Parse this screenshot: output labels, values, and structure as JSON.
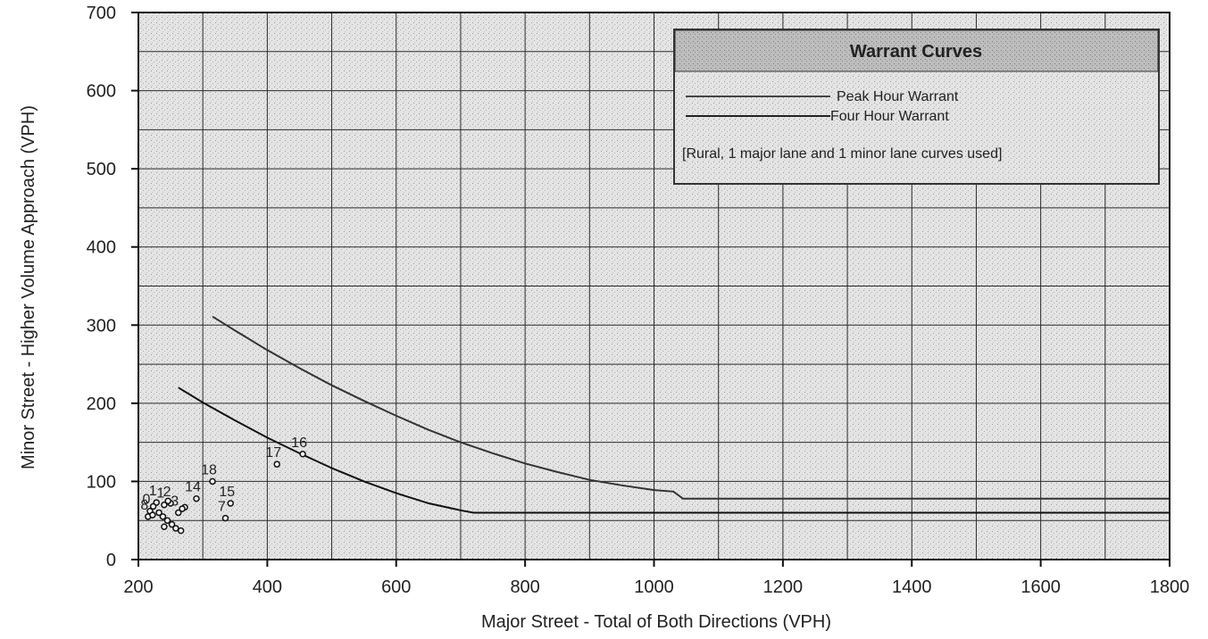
{
  "chart_data": {
    "type": "scatter",
    "xlabel": "Major Street - Total of Both Directions (VPH)",
    "ylabel": "Minor Street - Higher Volume Approach (VPH)",
    "xlim": [
      200,
      1800
    ],
    "ylim": [
      0,
      700
    ],
    "x_ticks": [
      "200",
      "400",
      "600",
      "800",
      "1000",
      "1200",
      "1400",
      "1600",
      "1800"
    ],
    "y_ticks": [
      "0",
      "100",
      "200",
      "300",
      "400",
      "500",
      "600",
      "700"
    ],
    "grid": true,
    "legend": {
      "title": "Warrant Curves",
      "placement": "top-right",
      "entries": [
        "Peak Hour Warrant",
        "Four Hour Warrant"
      ],
      "note": "[Rural, 1 major lane and 1 minor lane curves used]"
    },
    "series": [
      {
        "name": "Peak Hour Warrant",
        "kind": "line",
        "x": [
          315,
          350,
          400,
          450,
          500,
          550,
          600,
          650,
          700,
          750,
          800,
          850,
          900,
          950,
          1000,
          1030,
          1045,
          1100,
          1300,
          1500,
          1800
        ],
        "y": [
          311,
          293,
          268,
          245,
          223,
          203,
          184,
          166,
          150,
          136,
          123,
          112,
          102,
          95,
          89,
          87,
          78,
          78,
          78,
          78,
          78
        ]
      },
      {
        "name": "Four Hour Warrant",
        "kind": "line",
        "x": [
          262,
          300,
          350,
          400,
          450,
          500,
          550,
          600,
          650,
          700,
          720,
          800,
          1000,
          1200,
          1400,
          1600,
          1800
        ],
        "y": [
          220,
          201,
          178,
          156,
          136,
          117,
          100,
          85,
          72,
          63,
          60,
          60,
          60,
          60,
          60,
          60,
          60
        ]
      },
      {
        "kind": "points",
        "points": [
          {
            "x": 455,
            "y": 135,
            "label": "16"
          },
          {
            "x": 415,
            "y": 122,
            "label": "17"
          },
          {
            "x": 315,
            "y": 100,
            "label": "18"
          },
          {
            "x": 343,
            "y": 72,
            "label": "15"
          },
          {
            "x": 335,
            "y": 53,
            "label": "7"
          },
          {
            "x": 290,
            "y": 78,
            "label": "14"
          },
          {
            "x": 272,
            "y": 67,
            "label": ""
          },
          {
            "x": 268,
            "y": 65,
            "label": ""
          },
          {
            "x": 262,
            "y": 60,
            "label": "3"
          },
          {
            "x": 250,
            "y": 72,
            "label": "2"
          },
          {
            "x": 246,
            "y": 75,
            "label": ""
          },
          {
            "x": 240,
            "y": 70,
            "label": "1"
          },
          {
            "x": 228,
            "y": 73,
            "label": "1"
          },
          {
            "x": 223,
            "y": 68,
            "label": ""
          },
          {
            "x": 218,
            "y": 62,
            "label": "0"
          },
          {
            "x": 215,
            "y": 55,
            "label": "8"
          },
          {
            "x": 222,
            "y": 57,
            "label": ""
          },
          {
            "x": 232,
            "y": 60,
            "label": ""
          },
          {
            "x": 238,
            "y": 55,
            "label": ""
          },
          {
            "x": 245,
            "y": 50,
            "label": ""
          },
          {
            "x": 240,
            "y": 42,
            "label": ""
          },
          {
            "x": 252,
            "y": 45,
            "label": ""
          },
          {
            "x": 258,
            "y": 40,
            "label": ""
          },
          {
            "x": 266,
            "y": 37,
            "label": ""
          }
        ]
      }
    ]
  }
}
